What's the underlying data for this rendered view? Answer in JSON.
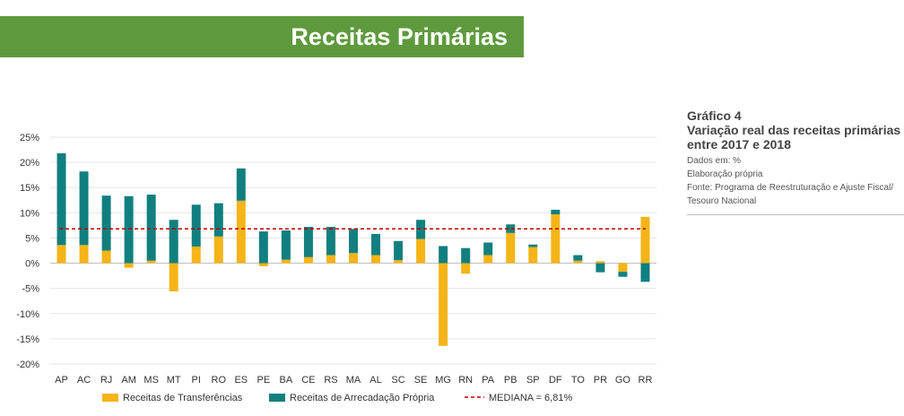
{
  "header": {
    "title": "Receitas Primárias"
  },
  "figure": {
    "number": "Gráfico 4",
    "title": "Variação real das receitas primárias entre 2017 e 2018",
    "units_note": "Dados em: %",
    "authorship": "Elaboração própria",
    "source": "Fonte: Programa de Reestruturação e Ajuste Fiscal/ Tesouro Nacional"
  },
  "colors": {
    "banner": "#5e9a3d",
    "transferencias": "#f5b417",
    "arrecadacao": "#117f7f",
    "mediana": "#c00000"
  },
  "chart_data": {
    "type": "bar",
    "stacked": true,
    "categories": [
      "AP",
      "AC",
      "RJ",
      "AM",
      "MS",
      "MT",
      "PI",
      "RO",
      "ES",
      "PE",
      "BA",
      "CE",
      "RS",
      "MA",
      "AL",
      "SC",
      "SE",
      "MG",
      "RN",
      "PA",
      "PB",
      "SP",
      "DF",
      "TO",
      "PR",
      "GO",
      "RR"
    ],
    "series": [
      {
        "name": "Receitas de Transferências",
        "values": [
          3.6,
          3.6,
          2.5,
          -0.9,
          0.5,
          -5.6,
          3.3,
          5.3,
          12.4,
          -0.6,
          0.7,
          1.2,
          1.6,
          2.0,
          1.6,
          0.6,
          4.8,
          -16.4,
          -2.1,
          1.6,
          6.0,
          3.2,
          9.7,
          0.5,
          0.4,
          -1.7,
          9.2
        ]
      },
      {
        "name": "Receitas de Arrecadação Própria",
        "values": [
          18.2,
          14.6,
          10.9,
          13.3,
          13.1,
          8.6,
          8.3,
          6.6,
          6.4,
          6.3,
          5.8,
          6.0,
          5.6,
          4.8,
          4.2,
          3.8,
          3.8,
          3.4,
          3.0,
          2.5,
          1.7,
          0.5,
          0.9,
          1.1,
          -1.8,
          -1.0,
          -3.7
        ]
      }
    ],
    "reference_line": {
      "name": "MEDIANA = 6,81%",
      "value": 6.81
    },
    "yticks": [
      "25%",
      "20%",
      "15%",
      "10%",
      "5%",
      "0%",
      "-5%",
      "-10%",
      "-15%",
      "-20%"
    ],
    "ylim": [
      -20,
      25
    ],
    "grid": true,
    "legend_position": "bottom"
  }
}
